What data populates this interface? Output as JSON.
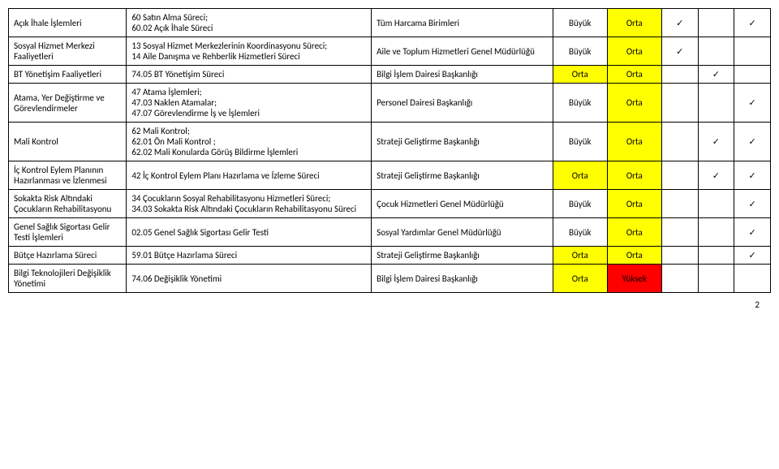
{
  "rows": [
    {
      "c1": "Açık İhale İşlemleri",
      "c2": "60 Satın Alma Süreci;\n60.02 Açık İhale Süreci",
      "c3": "Tüm Harcama Birimleri",
      "c4": "Büyük",
      "c4_bg": "",
      "c5": "Orta",
      "c5_bg": "yellow",
      "c6": "✓",
      "c7": "",
      "c8": "✓"
    },
    {
      "c1": "Sosyal Hizmet Merkezi Faaliyetleri",
      "c2": "13 Sosyal Hizmet Merkezlerinin Koordinasyonu Süreci;\n14 Aile Danışma ve Rehberlik Hizmetleri Süreci",
      "c3": "Aile ve Toplum Hizmetleri Genel Müdürlüğü",
      "c4": "Büyük",
      "c4_bg": "",
      "c5": "Orta",
      "c5_bg": "yellow",
      "c6": "✓",
      "c7": "",
      "c8": ""
    },
    {
      "c1": "BT Yönetişim Faaliyetleri",
      "c2": "74.05 BT Yönetişim Süreci",
      "c3": "Bilgi İşlem Dairesi Başkanlığı",
      "c4": "Orta",
      "c4_bg": "yellow",
      "c5": "Orta",
      "c5_bg": "yellow",
      "c6": "",
      "c7": "✓",
      "c8": ""
    },
    {
      "c1": "Atama, Yer Değiştirme ve Görevlendirmeler",
      "c2": "47 Atama İşlemleri;\n47.03 Naklen Atamalar;\n47.07 Görevlendirme İş ve İşlemleri",
      "c3": "Personel Dairesi Başkanlığı",
      "c4": "Büyük",
      "c4_bg": "",
      "c5": "Orta",
      "c5_bg": "yellow",
      "c6": "",
      "c7": "",
      "c8": "✓"
    },
    {
      "c1": "Mali Kontrol",
      "c2": "62 Mali Kontrol;\n62.01 Ön Mali Kontrol ;\n62.02 Mali Konularda Görüş Bildirme İşlemleri",
      "c3": "Strateji Geliştirme Başkanlığı",
      "c4": "Büyük",
      "c4_bg": "",
      "c5": "Orta",
      "c5_bg": "yellow",
      "c6": "",
      "c7": "✓",
      "c8": "✓"
    },
    {
      "c1": "İç Kontrol Eylem Planının Hazırlanması ve İzlenmesi",
      "c2": "42 İç Kontrol Eylem Planı Hazırlama ve İzleme Süreci",
      "c3": "Strateji Geliştirme Başkanlığı",
      "c4": "Orta",
      "c4_bg": "yellow",
      "c5": "Orta",
      "c5_bg": "yellow",
      "c6": "",
      "c7": "✓",
      "c8": "✓"
    },
    {
      "c1": "Sokakta Risk Altındaki Çocukların Rehabilitasyonu",
      "c2": "34 Çocukların Sosyal Rehabilitasyonu Hizmetleri Süreci;\n34.03 Sokakta Risk Altındaki Çocukların Rehabilitasyonu Süreci",
      "c3": "Çocuk Hizmetleri Genel Müdürlüğü",
      "c4": "Büyük",
      "c4_bg": "",
      "c5": "Orta",
      "c5_bg": "yellow",
      "c6": "",
      "c7": "",
      "c8": "✓"
    },
    {
      "c1": "Genel Sağlık Sigortası Gelir Testi İşlemleri",
      "c2": "02.05 Genel Sağlık Sigortası Gelir Testi",
      "c3": "Sosyal Yardımlar Genel Müdürlüğü",
      "c4": "Büyük",
      "c4_bg": "",
      "c5": "Orta",
      "c5_bg": "yellow",
      "c6": "",
      "c7": "",
      "c8": "✓"
    },
    {
      "c1": "Bütçe Hazırlama Süreci",
      "c2": "59.01 Bütçe Hazırlama Süreci",
      "c3": "Strateji Geliştirme Başkanlığı",
      "c4": "Orta",
      "c4_bg": "yellow",
      "c5": "Orta",
      "c5_bg": "yellow",
      "c6": "",
      "c7": "",
      "c8": "✓"
    },
    {
      "c1": "Bilgi Teknolojileri Değişiklik Yönetimi",
      "c2": "74.06 Değişiklik Yönetimi",
      "c3": "Bilgi İşlem Dairesi Başkanlığı",
      "c4": "Orta",
      "c4_bg": "yellow",
      "c5": "Yüksek",
      "c5_bg": "red",
      "c6": "",
      "c7": "",
      "c8": ""
    }
  ],
  "page_number": "2"
}
